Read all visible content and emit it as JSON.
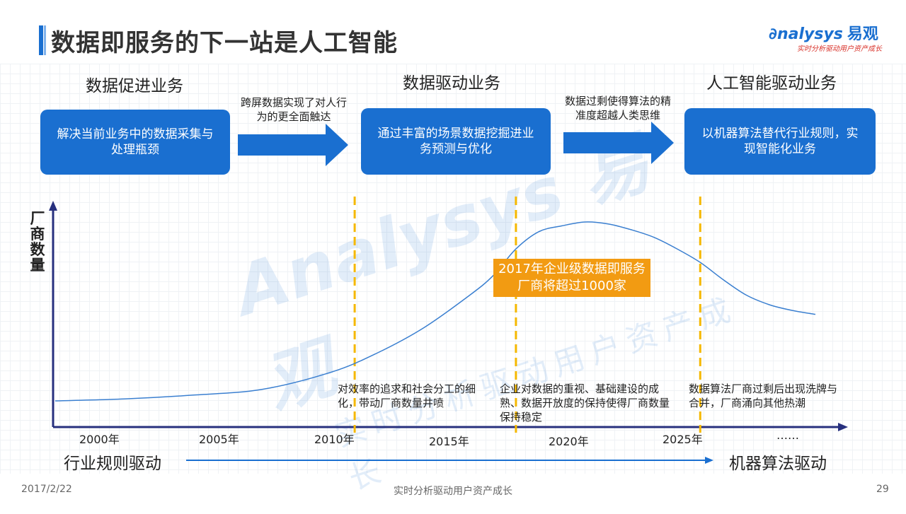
{
  "header": {
    "title": "数据即服务的下一站是人工智能",
    "logo_text": "nalysys",
    "logo_cn": "易观",
    "logo_tagline": "实时分析驱动用户资产成长"
  },
  "stages": [
    {
      "title": "数据促进业务",
      "box": "解决当前业务中的数据采集与处理瓶颈"
    },
    {
      "title": "数据驱动业务",
      "box": "通过丰富的场景数据挖掘进业务预测与优化"
    },
    {
      "title": "人工智能驱动业务",
      "box": "以机器算法替代行业规则，实现智能化业务"
    }
  ],
  "transitions": [
    {
      "text": "跨屏数据实现了对人行为的更全面触达"
    },
    {
      "text": "数据过剩使得算法的精准度超越人类思维"
    }
  ],
  "colors": {
    "primary": "#1a6fd0",
    "accent_orange": "#f29b12",
    "divider_yellow": "#f5b800",
    "axis_navy": "#27307e"
  },
  "chart_data": {
    "type": "line",
    "ylabel": "厂商数量",
    "x_ticks": [
      "2000年",
      "2005年",
      "2010年",
      "2015年",
      "2020年",
      "2025年",
      "……"
    ],
    "series": [
      {
        "x": [
          1997,
          2000,
          2003,
          2006,
          2009,
          2011,
          2013,
          2015,
          2016,
          2017,
          2018,
          2019,
          2020,
          2021,
          2022,
          2023,
          2024,
          2025,
          2026,
          2027,
          2028,
          2029,
          2030
        ],
        "y": [
          0.07,
          0.08,
          0.1,
          0.13,
          0.22,
          0.32,
          0.45,
          0.62,
          0.72,
          0.86,
          0.95,
          0.98,
          1.0,
          0.99,
          0.96,
          0.92,
          0.86,
          0.79,
          0.7,
          0.62,
          0.57,
          0.54,
          0.52
        ]
      }
    ],
    "dividers": [
      2010,
      2017,
      2025
    ],
    "callout": "2017年企业级数据即服务厂商将超过1000家",
    "annotations": [
      "对效率的追求和社会分工的细化，带动厂商数量井喷",
      "企业对数据的重视、基础建设的成熟、数据开放度的保持使得厂商数量保持稳定",
      "数据算法厂商过剩后出现洗牌与合并，厂商涌向其他热潮"
    ]
  },
  "drivers": {
    "left": "行业规则驱动",
    "right": "机器算法驱动"
  },
  "footer": {
    "date": "2017/2/22",
    "center": "实时分析驱动用户资产成长",
    "page": "29"
  }
}
